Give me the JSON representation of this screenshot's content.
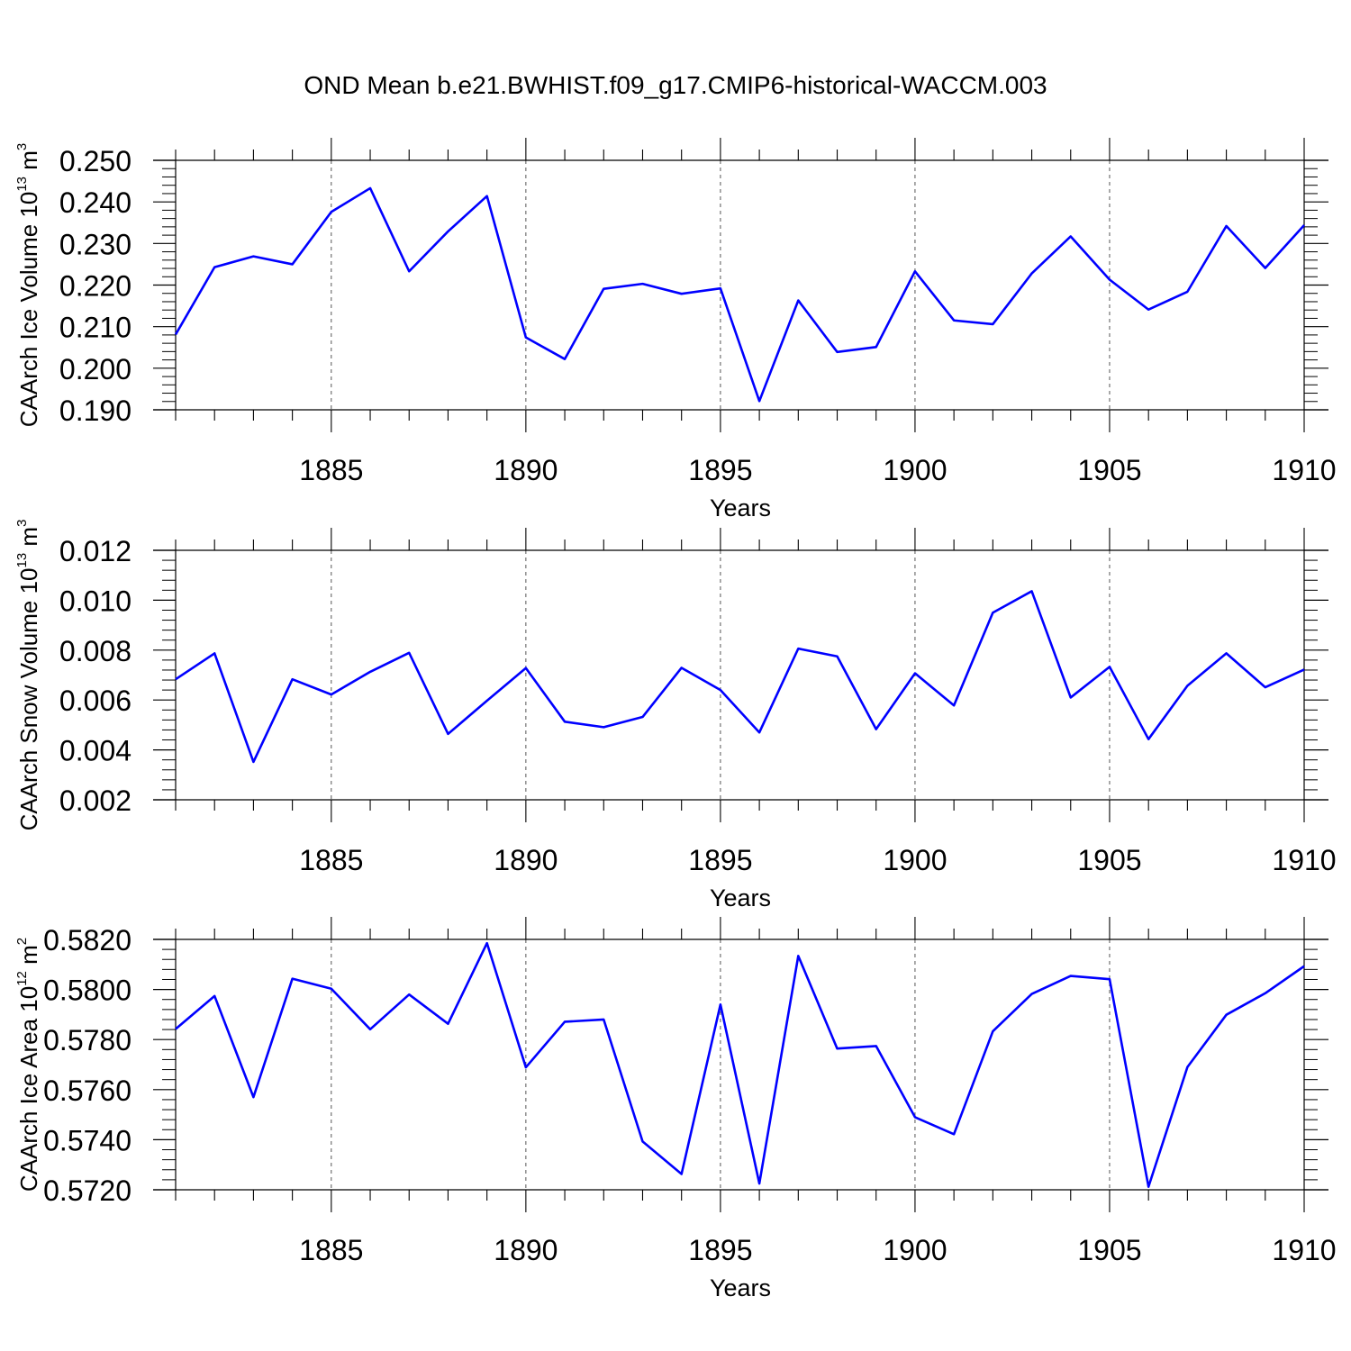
{
  "title": "OND Mean b.e21.BWHIST.f09_g17.CMIP6-historical-WACCM.003",
  "colors": {
    "line": "#0000ff",
    "axis": "#000000",
    "grid": "#555555"
  },
  "chart_data": [
    {
      "type": "line",
      "xlabel": "Years",
      "ylabel": "CAArch Ice Volume 10",
      "ylabel_exp": "13",
      "ylabel_unit": " m",
      "ylabel_unit_exp": "3",
      "xlim": [
        1881,
        1910
      ],
      "ylim": [
        0.19,
        0.25
      ],
      "yticks": [
        "0.190",
        "0.200",
        "0.210",
        "0.220",
        "0.230",
        "0.240",
        "0.250"
      ],
      "xticks": [
        "1885",
        "1890",
        "1895",
        "1900",
        "1905",
        "1910"
      ],
      "grid_x": [
        1885,
        1890,
        1895,
        1900,
        1905
      ],
      "x": [
        1881,
        1882,
        1883,
        1884,
        1885,
        1886,
        1887,
        1888,
        1889,
        1890,
        1891,
        1892,
        1893,
        1894,
        1895,
        1896,
        1897,
        1898,
        1899,
        1900,
        1901,
        1902,
        1903,
        1904,
        1905,
        1906,
        1907,
        1908,
        1909,
        1910
      ],
      "series": [
        {
          "values": [
            0.2081,
            0.2243,
            0.2269,
            0.225,
            0.2376,
            0.2433,
            0.2233,
            0.2329,
            0.2414,
            0.2074,
            0.2022,
            0.2191,
            0.2203,
            0.2179,
            0.2192,
            0.1921,
            0.2163,
            0.2039,
            0.2051,
            0.2233,
            0.2115,
            0.2106,
            0.2228,
            0.2317,
            0.2213,
            0.2141,
            0.2184,
            0.2342,
            0.2241,
            0.2344
          ]
        }
      ]
    },
    {
      "type": "line",
      "xlabel": "Years",
      "ylabel": "CAArch Snow Volume 10",
      "ylabel_exp": "13",
      "ylabel_unit": " m",
      "ylabel_unit_exp": "3",
      "xlim": [
        1881,
        1910
      ],
      "ylim": [
        0.002,
        0.012
      ],
      "yticks": [
        "0.002",
        "0.004",
        "0.006",
        "0.008",
        "0.010",
        "0.012"
      ],
      "xticks": [
        "1885",
        "1890",
        "1895",
        "1900",
        "1905",
        "1910"
      ],
      "grid_x": [
        1885,
        1890,
        1895,
        1900,
        1905
      ],
      "x": [
        1881,
        1882,
        1883,
        1884,
        1885,
        1886,
        1887,
        1888,
        1889,
        1890,
        1891,
        1892,
        1893,
        1894,
        1895,
        1896,
        1897,
        1898,
        1899,
        1900,
        1901,
        1902,
        1903,
        1904,
        1905,
        1906,
        1907,
        1908,
        1909,
        1910
      ],
      "series": [
        {
          "values": [
            0.00683,
            0.00787,
            0.00352,
            0.00683,
            0.00622,
            0.00713,
            0.00789,
            0.00464,
            0.00597,
            0.00728,
            0.00513,
            0.00491,
            0.00532,
            0.00729,
            0.0064,
            0.0047,
            0.00806,
            0.00775,
            0.00483,
            0.00707,
            0.00578,
            0.0095,
            0.01036,
            0.0061,
            0.00733,
            0.00443,
            0.00657,
            0.00787,
            0.00651,
            0.00722
          ]
        }
      ]
    },
    {
      "type": "line",
      "xlabel": "Years",
      "ylabel": "CAArch Ice Area 10",
      "ylabel_exp": "12",
      "ylabel_unit": " m",
      "ylabel_unit_exp": "2",
      "xlim": [
        1881,
        1910
      ],
      "ylim": [
        0.572,
        0.582
      ],
      "yticks": [
        "0.5720",
        "0.5740",
        "0.5760",
        "0.5780",
        "0.5800",
        "0.5820"
      ],
      "xticks": [
        "1885",
        "1890",
        "1895",
        "1900",
        "1905",
        "1910"
      ],
      "grid_x": [
        1885,
        1890,
        1895,
        1900,
        1905
      ],
      "x": [
        1881,
        1882,
        1883,
        1884,
        1885,
        1886,
        1887,
        1888,
        1889,
        1890,
        1891,
        1892,
        1893,
        1894,
        1895,
        1896,
        1897,
        1898,
        1899,
        1900,
        1901,
        1902,
        1903,
        1904,
        1905,
        1906,
        1907,
        1908,
        1909,
        1910
      ],
      "series": [
        {
          "values": [
            0.57842,
            0.57974,
            0.5757,
            0.58043,
            0.58003,
            0.57841,
            0.5798,
            0.57863,
            0.58185,
            0.57689,
            0.57871,
            0.5788,
            0.57393,
            0.57263,
            0.5794,
            0.57225,
            0.58134,
            0.57764,
            0.57774,
            0.5749,
            0.57422,
            0.57833,
            0.57982,
            0.58054,
            0.58041,
            0.57212,
            0.5769,
            0.57899,
            0.57985,
            0.58093
          ]
        }
      ]
    }
  ]
}
